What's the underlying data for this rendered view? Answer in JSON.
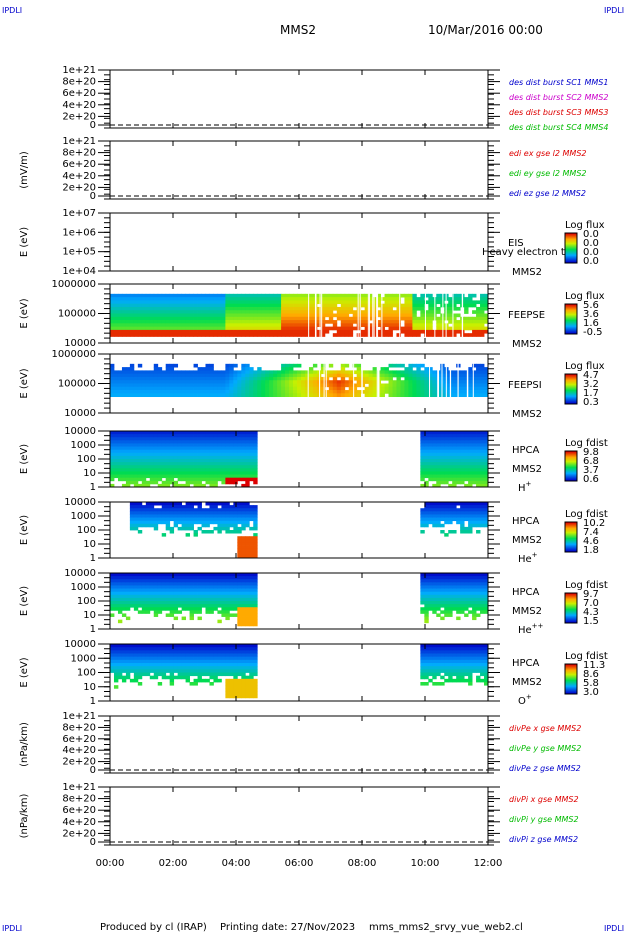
{
  "corner_left": "IPDLI",
  "corner_right": "IPDLI",
  "header": {
    "mission": "MMS2",
    "datetime": "10/Mar/2016 00:00"
  },
  "footer": {
    "produced_by": "Produced by cl (IRAP)",
    "printing_date": "Printing date: 27/Nov/2023",
    "file": "mms_mms2_srvy_vue_web2.cl"
  },
  "x_ticks": [
    "00:00",
    "02:00",
    "04:00",
    "06:00",
    "08:00",
    "10:00",
    "12:00"
  ],
  "colors": {
    "blue": "#0000cc",
    "magenta": "#cc00cc",
    "red": "#dd0000",
    "green": "#00bb00"
  },
  "chart_data": [
    {
      "type": "line",
      "ylabel": "",
      "ylim": [
        0,
        1e+21
      ],
      "yticks": [
        "1e+21",
        "8e+20",
        "6e+20",
        "4e+20",
        "2e+20",
        "0"
      ],
      "series": [
        {
          "name": "des dist burst SC1 MMS1",
          "color": "#0000cc",
          "values": [
            0,
            0
          ]
        },
        {
          "name": "des dist burst SC2 MMS2",
          "color": "#cc00cc",
          "values": [
            0,
            0
          ]
        },
        {
          "name": "des dist burst SC3 MMS3",
          "color": "#dd0000",
          "values": [
            0,
            0
          ]
        },
        {
          "name": "des dist burst SC4 MMS4",
          "color": "#00bb00",
          "values": [
            0,
            0
          ]
        }
      ]
    },
    {
      "type": "line",
      "ylabel": "(mV/m)",
      "ylim": [
        0,
        1e+21
      ],
      "yticks": [
        "1e+21",
        "8e+20",
        "6e+20",
        "4e+20",
        "2e+20",
        "0"
      ],
      "series": [
        {
          "name": "edi ex gse l2 MMS2",
          "color": "#dd0000",
          "values": [
            0,
            0
          ]
        },
        {
          "name": "edi ey gse l2 MMS2",
          "color": "#00bb00",
          "values": [
            0,
            0
          ]
        },
        {
          "name": "edi ez gse l2 MMS2",
          "color": "#0000cc",
          "values": [
            0,
            0
          ]
        }
      ]
    },
    {
      "type": "heatmap",
      "ylabel": "E (eV)",
      "yscale": "log",
      "yticks": [
        "1e+07",
        "1e+06",
        "1e+05",
        "1e+04"
      ],
      "right_labels": [
        "EIS",
        "MMS2"
      ],
      "overlay": "Heavy electron to",
      "colorbar": {
        "title": "Log flux",
        "ticks": [
          "0.0",
          "0.0",
          "0.0",
          "0.0"
        ]
      }
    },
    {
      "type": "heatmap",
      "ylabel": "E (eV)",
      "yscale": "log",
      "yticks": [
        "1000000",
        "100000",
        "10000"
      ],
      "right_labels": [
        "FEEPSE",
        "MMS2"
      ],
      "colorbar": {
        "title": "Log flux",
        "ticks": [
          "5.6",
          "3.6",
          "1.6",
          "-0.5"
        ]
      }
    },
    {
      "type": "heatmap",
      "ylabel": "E (eV)",
      "yscale": "log",
      "yticks": [
        "1000000",
        "100000",
        "10000"
      ],
      "right_labels": [
        "FEEPSI",
        "MMS2"
      ],
      "colorbar": {
        "title": "Log flux",
        "ticks": [
          "4.7",
          "3.2",
          "1.7",
          "0.3"
        ]
      }
    },
    {
      "type": "heatmap",
      "ylabel": "E (eV)",
      "yscale": "log",
      "yticks": [
        "10000",
        "1000",
        "100",
        "10",
        "1"
      ],
      "right_labels": [
        "HPCA",
        "MMS2"
      ],
      "species": "H",
      "species_sup": "+",
      "colorbar": {
        "title": "Log fdist",
        "ticks": [
          "9.8",
          "6.8",
          "3.7",
          "0.6"
        ]
      }
    },
    {
      "type": "heatmap",
      "ylabel": "E (eV)",
      "yscale": "log",
      "yticks": [
        "10000",
        "1000",
        "100",
        "10",
        "1"
      ],
      "right_labels": [
        "HPCA",
        "MMS2"
      ],
      "species": "He",
      "species_sup": "+",
      "colorbar": {
        "title": "Log fdist",
        "ticks": [
          "10.2",
          "7.4",
          "4.6",
          "1.8"
        ]
      }
    },
    {
      "type": "heatmap",
      "ylabel": "E (eV)",
      "yscale": "log",
      "yticks": [
        "10000",
        "1000",
        "100",
        "10",
        "1"
      ],
      "right_labels": [
        "HPCA",
        "MMS2"
      ],
      "species": "He",
      "species_sup": "++",
      "colorbar": {
        "title": "Log fdist",
        "ticks": [
          "9.7",
          "7.0",
          "4.3",
          "1.5"
        ]
      }
    },
    {
      "type": "heatmap",
      "ylabel": "E (eV)",
      "yscale": "log",
      "yticks": [
        "10000",
        "1000",
        "100",
        "10",
        "1"
      ],
      "right_labels": [
        "HPCA",
        "MMS2"
      ],
      "species": "O",
      "species_sup": "+",
      "colorbar": {
        "title": "Log fdist",
        "ticks": [
          "11.3",
          "8.6",
          "5.8",
          "3.0"
        ]
      }
    },
    {
      "type": "line",
      "ylabel": "(nPa/km)",
      "ylim": [
        0,
        1e+21
      ],
      "yticks": [
        "1e+21",
        "8e+20",
        "6e+20",
        "4e+20",
        "2e+20",
        "0"
      ],
      "series": [
        {
          "name": "divPe x gse MMS2",
          "color": "#dd0000",
          "values": [
            0,
            0
          ]
        },
        {
          "name": "divPe y gse MMS2",
          "color": "#00bb00",
          "values": [
            0,
            0
          ]
        },
        {
          "name": "divPe z gse MMS2",
          "color": "#0000cc",
          "values": [
            0,
            0
          ]
        }
      ]
    },
    {
      "type": "line",
      "ylabel": "(nPa/km)",
      "ylim": [
        0,
        1e+21
      ],
      "yticks": [
        "1e+21",
        "8e+20",
        "6e+20",
        "4e+20",
        "2e+20",
        "0"
      ],
      "series": [
        {
          "name": "divPi x gse MMS2",
          "color": "#dd0000",
          "values": [
            0,
            0
          ]
        },
        {
          "name": "divPi y gse MMS2",
          "color": "#00bb00",
          "values": [
            0,
            0
          ]
        },
        {
          "name": "divPi z gse MMS2",
          "color": "#0000cc",
          "values": [
            0,
            0
          ]
        }
      ]
    }
  ]
}
